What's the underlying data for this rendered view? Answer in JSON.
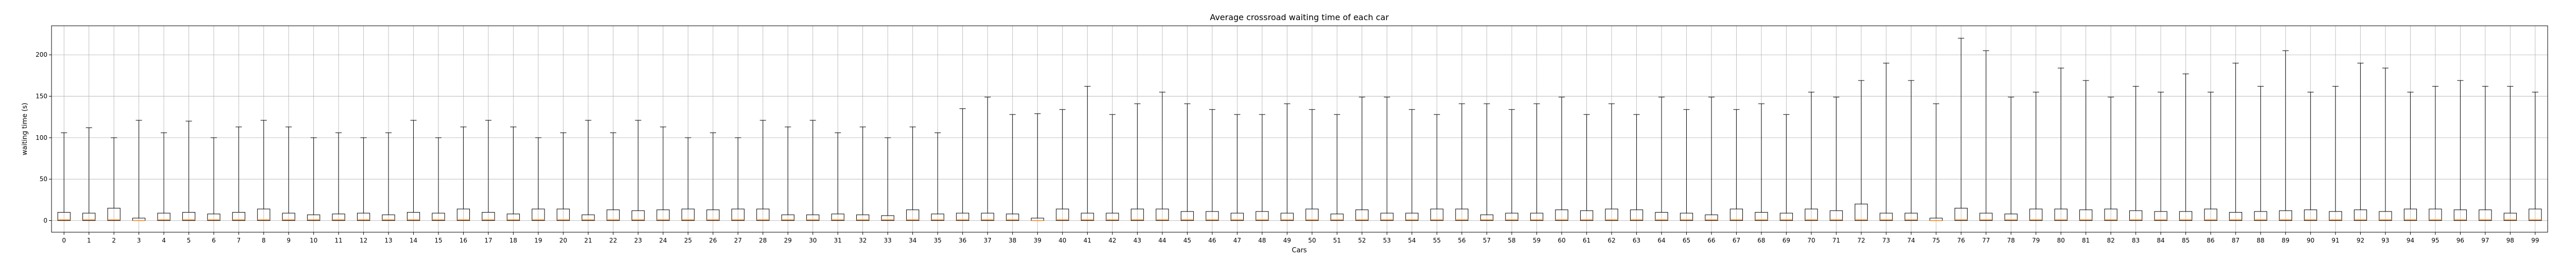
{
  "chart_data": {
    "type": "box",
    "title": "Average crossroad waiting time of each car",
    "xlabel": "Cars",
    "ylabel": "waiting time (s)",
    "ylim": [
      -14,
      235
    ],
    "yticks": [
      0,
      50,
      100,
      150,
      200
    ],
    "grid": true,
    "categories": [
      "0",
      "1",
      "2",
      "3",
      "4",
      "5",
      "6",
      "7",
      "8",
      "9",
      "10",
      "11",
      "12",
      "13",
      "14",
      "15",
      "16",
      "17",
      "18",
      "19",
      "20",
      "21",
      "22",
      "23",
      "24",
      "25",
      "26",
      "27",
      "28",
      "29",
      "30",
      "31",
      "32",
      "33",
      "34",
      "35",
      "36",
      "37",
      "38",
      "39",
      "40",
      "41",
      "42",
      "43",
      "44",
      "45",
      "46",
      "47",
      "48",
      "49",
      "50",
      "51",
      "52",
      "53",
      "54",
      "55",
      "56",
      "57",
      "58",
      "59",
      "60",
      "61",
      "62",
      "63",
      "64",
      "65",
      "66",
      "67",
      "68",
      "69",
      "70",
      "71",
      "72",
      "73",
      "74",
      "75",
      "76",
      "77",
      "78",
      "79",
      "80",
      "81",
      "82",
      "83",
      "84",
      "85",
      "86",
      "87",
      "88",
      "89",
      "90",
      "91",
      "92",
      "93",
      "94",
      "95",
      "96",
      "97",
      "98",
      "99"
    ],
    "boxes": {
      "min": [
        0,
        0,
        0,
        0,
        0,
        0,
        0,
        0,
        0,
        0,
        0,
        0,
        0,
        0,
        0,
        0,
        0,
        0,
        0,
        0,
        0,
        0,
        0,
        0,
        0,
        0,
        0,
        0,
        0,
        0,
        0,
        0,
        0,
        0,
        0,
        0,
        0,
        0,
        0,
        0,
        0,
        0,
        0,
        0,
        0,
        0,
        0,
        0,
        0,
        0,
        0,
        0,
        0,
        0,
        0,
        0,
        0,
        0,
        0,
        0,
        0,
        0,
        0,
        0,
        0,
        0,
        0,
        0,
        0,
        0,
        0,
        0,
        0,
        0,
        0,
        0,
        0,
        0,
        0,
        0,
        0,
        0,
        0,
        0,
        0,
        0,
        0,
        0,
        0,
        0,
        0,
        0,
        0,
        0,
        0,
        0,
        0,
        0,
        0,
        0
      ],
      "q1": [
        0,
        0,
        0,
        0,
        0,
        0,
        0,
        0,
        0,
        0,
        0,
        0,
        0,
        0,
        0,
        0,
        0,
        0,
        0,
        0,
        0,
        0,
        0,
        0,
        0,
        0,
        0,
        0,
        0,
        0,
        0,
        0,
        0,
        0,
        0,
        0,
        0,
        0,
        0,
        0,
        0,
        0,
        0,
        0,
        0,
        0,
        0,
        0,
        0,
        0,
        0,
        0,
        0,
        0,
        0,
        0,
        0,
        0,
        0,
        0,
        0,
        0,
        0,
        0,
        0,
        0,
        0,
        0,
        0,
        0,
        0,
        0,
        0,
        0,
        0,
        0,
        0,
        0,
        0,
        0,
        0,
        0,
        0,
        0,
        0,
        0,
        0,
        0,
        0,
        0,
        0,
        0,
        0,
        0,
        0,
        0,
        0,
        0,
        0,
        0
      ],
      "median": [
        1,
        1,
        1,
        0,
        1,
        1,
        1,
        1,
        1,
        1,
        1,
        1,
        1,
        1,
        1,
        1,
        1,
        1,
        1,
        1,
        1,
        1,
        1,
        1,
        1,
        1,
        1,
        1,
        1,
        1,
        1,
        1,
        1,
        1,
        1,
        1,
        1,
        1,
        1,
        0,
        1,
        1,
        1,
        1,
        1,
        1,
        1,
        1,
        1,
        1,
        1,
        1,
        1,
        1,
        1,
        1,
        1,
        1,
        1,
        1,
        1,
        1,
        1,
        1,
        1,
        1,
        1,
        1,
        1,
        1,
        1,
        1,
        1,
        1,
        1,
        0,
        1,
        1,
        1,
        1,
        1,
        1,
        1,
        1,
        1,
        1,
        1,
        1,
        1,
        1,
        1,
        1,
        1,
        1,
        1,
        1,
        1,
        1,
        1,
        1
      ],
      "q3": [
        10,
        9,
        15,
        3,
        9,
        10,
        8,
        10,
        14,
        9,
        7,
        8,
        9,
        7,
        10,
        9,
        14,
        10,
        8,
        14,
        14,
        7,
        13,
        12,
        13,
        14,
        13,
        14,
        14,
        7,
        7,
        8,
        7,
        6,
        13,
        8,
        9,
        9,
        8,
        3,
        14,
        9,
        9,
        14,
        14,
        11,
        11,
        9,
        11,
        9,
        14,
        8,
        13,
        9,
        9,
        14,
        14,
        7,
        9,
        9,
        13,
        12,
        14,
        13,
        10,
        9,
        7,
        14,
        10,
        9,
        14,
        12,
        20,
        9,
        9,
        3,
        15,
        9,
        8,
        14,
        14,
        13,
        14,
        12,
        11,
        11,
        14,
        10,
        11,
        12,
        13,
        11,
        13,
        11,
        14,
        14,
        13,
        13,
        9,
        14
      ],
      "max": [
        106,
        112,
        100,
        121,
        106,
        120,
        100,
        113,
        121,
        113,
        100,
        106,
        100,
        106,
        121,
        100,
        113,
        121,
        113,
        100,
        106,
        121,
        106,
        121,
        113,
        100,
        106,
        100,
        121,
        113,
        121,
        106,
        113,
        100,
        113,
        106,
        135,
        149,
        128,
        129,
        134,
        162,
        128,
        141,
        155,
        141,
        134,
        128,
        128,
        141,
        134,
        128,
        149,
        149,
        134,
        128,
        141,
        141,
        134,
        141,
        149,
        128,
        141,
        128,
        149,
        134,
        149,
        134,
        141,
        128,
        155,
        149,
        169,
        190,
        169,
        141,
        220,
        205,
        149,
        155,
        184,
        169,
        149,
        162,
        155,
        177,
        155,
        190,
        162,
        205,
        155,
        162,
        190,
        184,
        155,
        162,
        169,
        162,
        162,
        155
      ]
    }
  }
}
